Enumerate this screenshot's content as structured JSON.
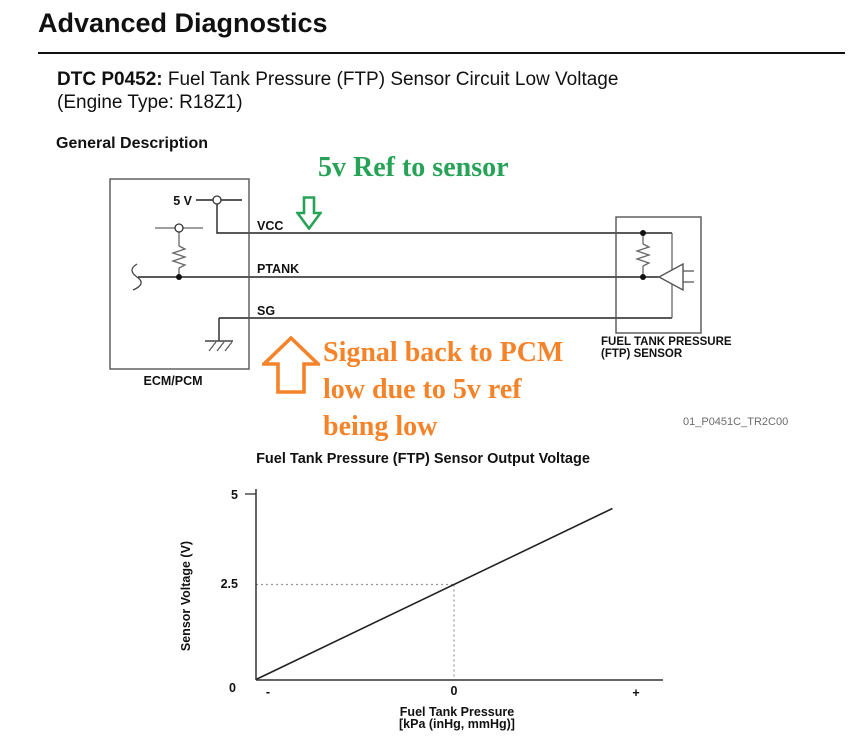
{
  "page": {
    "title": "Advanced Diagnostics"
  },
  "dtc": {
    "code_label": "DTC P0452:",
    "description": " Fuel Tank Pressure (FTP) Sensor Circuit Low Voltage",
    "engine": "(Engine Type: R18Z1)"
  },
  "section": {
    "heading": "General Description"
  },
  "diagram": {
    "ecm_label": "ECM/PCM",
    "supply_label": "5 V",
    "pin_labels": [
      "VCC",
      "PTANK",
      "SG"
    ],
    "sensor_label_line1": "FUEL TANK PRESSURE",
    "sensor_label_line2": "(FTP) SENSOR",
    "figure_code": "01_P0451C_TR2C00",
    "annotations": {
      "green": {
        "text": "5v Ref to sensor",
        "color": "#27a357",
        "arrow": "down-block-arrow"
      },
      "orange": {
        "text": "Signal back to PCM\nlow due to 5v ref\nbeing low",
        "color": "#f5832a",
        "arrow": "up-block-arrow"
      }
    }
  },
  "chart_data": {
    "type": "line",
    "title": "Fuel Tank Pressure (FTP) Sensor Output Voltage",
    "xlabel": "Fuel Tank Pressure\n[kPa (inHg, mmHg)]",
    "ylabel": "Sensor Voltage (V)",
    "x_ticks": [
      "-",
      "0",
      "+"
    ],
    "y_ticks": [
      "0",
      "2.5",
      "5"
    ],
    "ylim": [
      0,
      5
    ],
    "x_axis_note": "x normalized: -1 = left axis end (vacuum), 0 = center tick (atmospheric), positive = pressure",
    "points": [
      {
        "x": -1,
        "v": 0
      },
      {
        "x": 0.8,
        "v": 4.5
      }
    ],
    "reference": {
      "x": 0,
      "v": 2.5
    },
    "grid": false,
    "legend": null
  }
}
